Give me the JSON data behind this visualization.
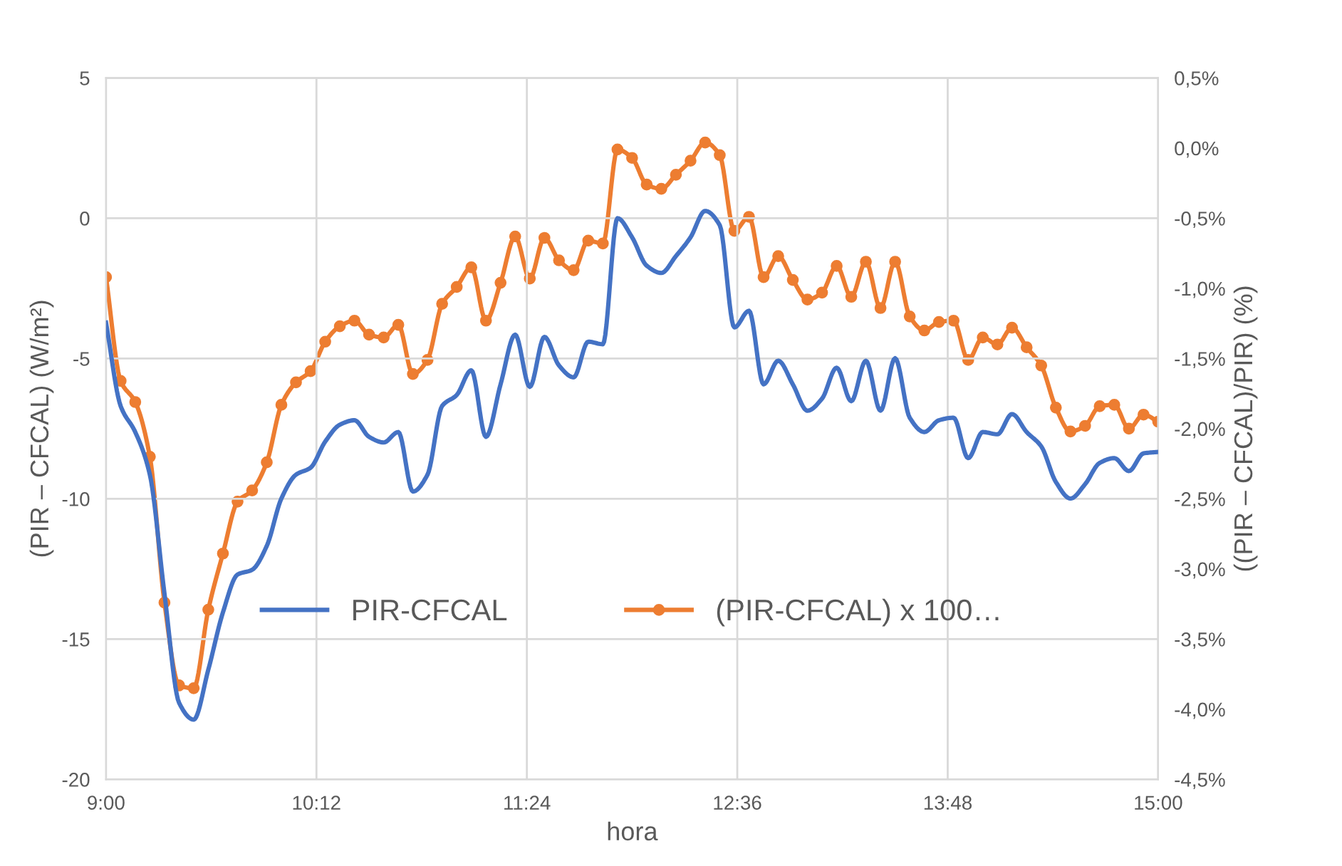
{
  "chart_data": {
    "type": "line",
    "xlabel": "hora",
    "ylabel": "(PIR – CFCAL) (W/m²)",
    "y2label": "((PIR – CFCAL)/PIR) (%)",
    "x": [
      9.0,
      9.0833,
      9.1667,
      9.25,
      9.3333,
      9.4167,
      9.5,
      9.5833,
      9.6667,
      9.75,
      9.8333,
      9.9167,
      10.0,
      10.0833,
      10.1667,
      10.25,
      10.3333,
      10.4167,
      10.5,
      10.5833,
      10.6667,
      10.75,
      10.8333,
      10.9167,
      11.0,
      11.0833,
      11.1667,
      11.25,
      11.3333,
      11.4167,
      11.5,
      11.5833,
      11.6667,
      11.75,
      11.8333,
      11.9167,
      12.0,
      12.0833,
      12.1667,
      12.25,
      12.3333,
      12.4167,
      12.5,
      12.5833,
      12.6667,
      12.75,
      12.8333,
      12.9167,
      13.0,
      13.0833,
      13.1667,
      13.25,
      13.3333,
      13.4167,
      13.5,
      13.5833,
      13.6667,
      13.75,
      13.8333,
      13.9167,
      14.0,
      14.0833,
      14.1667,
      14.25,
      14.3333,
      14.4167,
      14.5,
      14.5833,
      14.6667,
      14.75,
      14.8333,
      14.9167,
      15.0
    ],
    "series": [
      {
        "name": "PIR-CFCAL",
        "color": "#4472c4",
        "marker": "none",
        "values": [
          -3.72,
          -6.69,
          -7.62,
          -9.14,
          -13.38,
          -17.27,
          -17.87,
          -16.09,
          -14.05,
          -12.7,
          -12.53,
          -11.68,
          -9.99,
          -9.14,
          -8.89,
          -7.96,
          -7.36,
          -7.2,
          -7.79,
          -7.99,
          -7.62,
          -9.74,
          -9.14,
          -6.69,
          -6.3,
          -5.42,
          -7.79,
          -5.92,
          -4.15,
          -6.01,
          -4.23,
          -5.25,
          -5.67,
          -4.4,
          -4.49,
          0.0,
          -0.68,
          -1.69,
          -1.95,
          -1.35,
          -0.68,
          0.26,
          -0.25,
          -3.89,
          -3.3,
          -5.92,
          -5.08,
          -5.92,
          -6.86,
          -6.43,
          -5.33,
          -6.52,
          -5.08,
          -6.86,
          -4.99,
          -7.11,
          -7.62,
          -7.2,
          -7.11,
          -8.55,
          -7.62,
          -7.7,
          -6.98,
          -7.62,
          -8.13,
          -9.4,
          -9.99,
          -9.48,
          -8.72,
          -8.55,
          -9.01,
          -8.38,
          -8.33
        ]
      },
      {
        "name": "(PIR-CFCAL) x 100…",
        "color": "#ed7d31",
        "marker": "circle",
        "axis": "y2",
        "values": [
          -0.92,
          -1.66,
          -1.81,
          -2.2,
          -3.24,
          -3.83,
          -3.85,
          -3.29,
          -2.89,
          -2.52,
          -2.44,
          -2.24,
          -1.83,
          -1.67,
          -1.59,
          -1.38,
          -1.27,
          -1.23,
          -1.33,
          -1.35,
          -1.26,
          -1.61,
          -1.51,
          -1.11,
          -0.99,
          -0.85,
          -1.23,
          -0.96,
          -0.63,
          -0.93,
          -0.64,
          -0.8,
          -0.87,
          -0.66,
          -0.68,
          -0.01,
          -0.07,
          -0.26,
          -0.29,
          -0.19,
          -0.09,
          0.04,
          -0.05,
          -0.59,
          -0.49,
          -0.92,
          -0.77,
          -0.94,
          -1.08,
          -1.03,
          -0.84,
          -1.06,
          -0.81,
          -1.14,
          -0.81,
          -1.2,
          -1.3,
          -1.24,
          -1.23,
          -1.51,
          -1.35,
          -1.4,
          -1.28,
          -1.42,
          -1.55,
          -1.85,
          -2.02,
          -1.98,
          -1.84,
          -1.83,
          -2.0,
          -1.9,
          -1.95
        ]
      }
    ],
    "xlim": [
      9.0,
      15.0
    ],
    "xticks": [
      {
        "value": 9.0,
        "label": "9:00"
      },
      {
        "value": 10.2,
        "label": "10:12"
      },
      {
        "value": 11.4,
        "label": "11:24"
      },
      {
        "value": 12.6,
        "label": "12:36"
      },
      {
        "value": 13.8,
        "label": "13:48"
      },
      {
        "value": 15.0,
        "label": "15:00"
      }
    ],
    "ylim": [
      -20,
      5
    ],
    "yticks": [
      -20,
      -15,
      -10,
      -5,
      0,
      5
    ],
    "y2lim": [
      -4.5,
      0.5
    ],
    "y2ticks": [
      {
        "value": -4.5,
        "label": "-4,5%"
      },
      {
        "value": -4.0,
        "label": "-4,0%"
      },
      {
        "value": -3.5,
        "label": "-3,5%"
      },
      {
        "value": -3.0,
        "label": "-3,0%"
      },
      {
        "value": -2.5,
        "label": "-2,5%"
      },
      {
        "value": -2.0,
        "label": "-2,0%"
      },
      {
        "value": -1.5,
        "label": "-1,5%"
      },
      {
        "value": -1.0,
        "label": "-1,0%"
      },
      {
        "value": -0.5,
        "label": "-0,5%"
      },
      {
        "value": 0.0,
        "label": "0,0%"
      },
      {
        "value": 0.5,
        "label": "0,5%"
      }
    ],
    "grid": true,
    "legend": "bottom",
    "line_style": "solid"
  }
}
